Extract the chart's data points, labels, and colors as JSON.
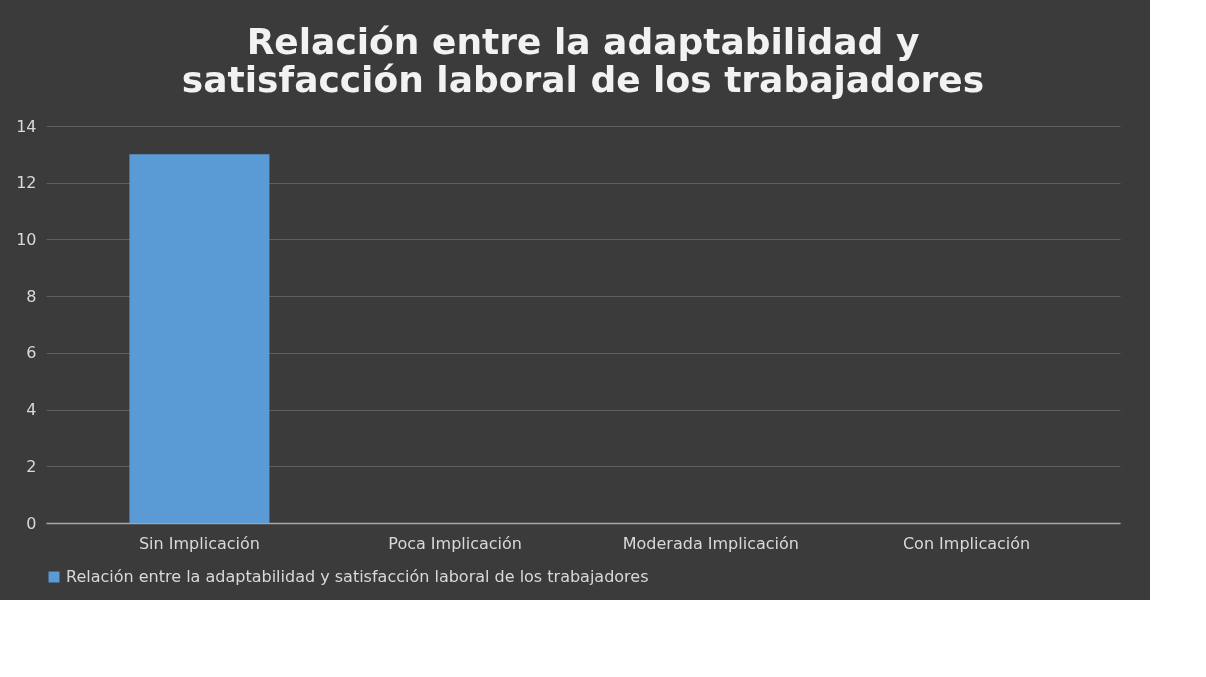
{
  "chart_data": {
    "type": "bar",
    "title": "Relación entre la adaptabilidad y satisfacción laboral de los trabajadores",
    "categories": [
      "Sin Implicación",
      "Poca Implicación",
      "Moderada Implicación",
      "Con Implicación"
    ],
    "series": [
      {
        "name": "Relación entre la adaptabilidad y satisfacción laboral de los trabajadores",
        "color": "#5b9bd5",
        "values": [
          13,
          0,
          0,
          0
        ]
      }
    ],
    "ylim": [
      0,
      14
    ],
    "yticks": [
      0,
      2,
      4,
      6,
      8,
      10,
      12,
      14
    ],
    "grid": "y",
    "legend": "bottom"
  }
}
